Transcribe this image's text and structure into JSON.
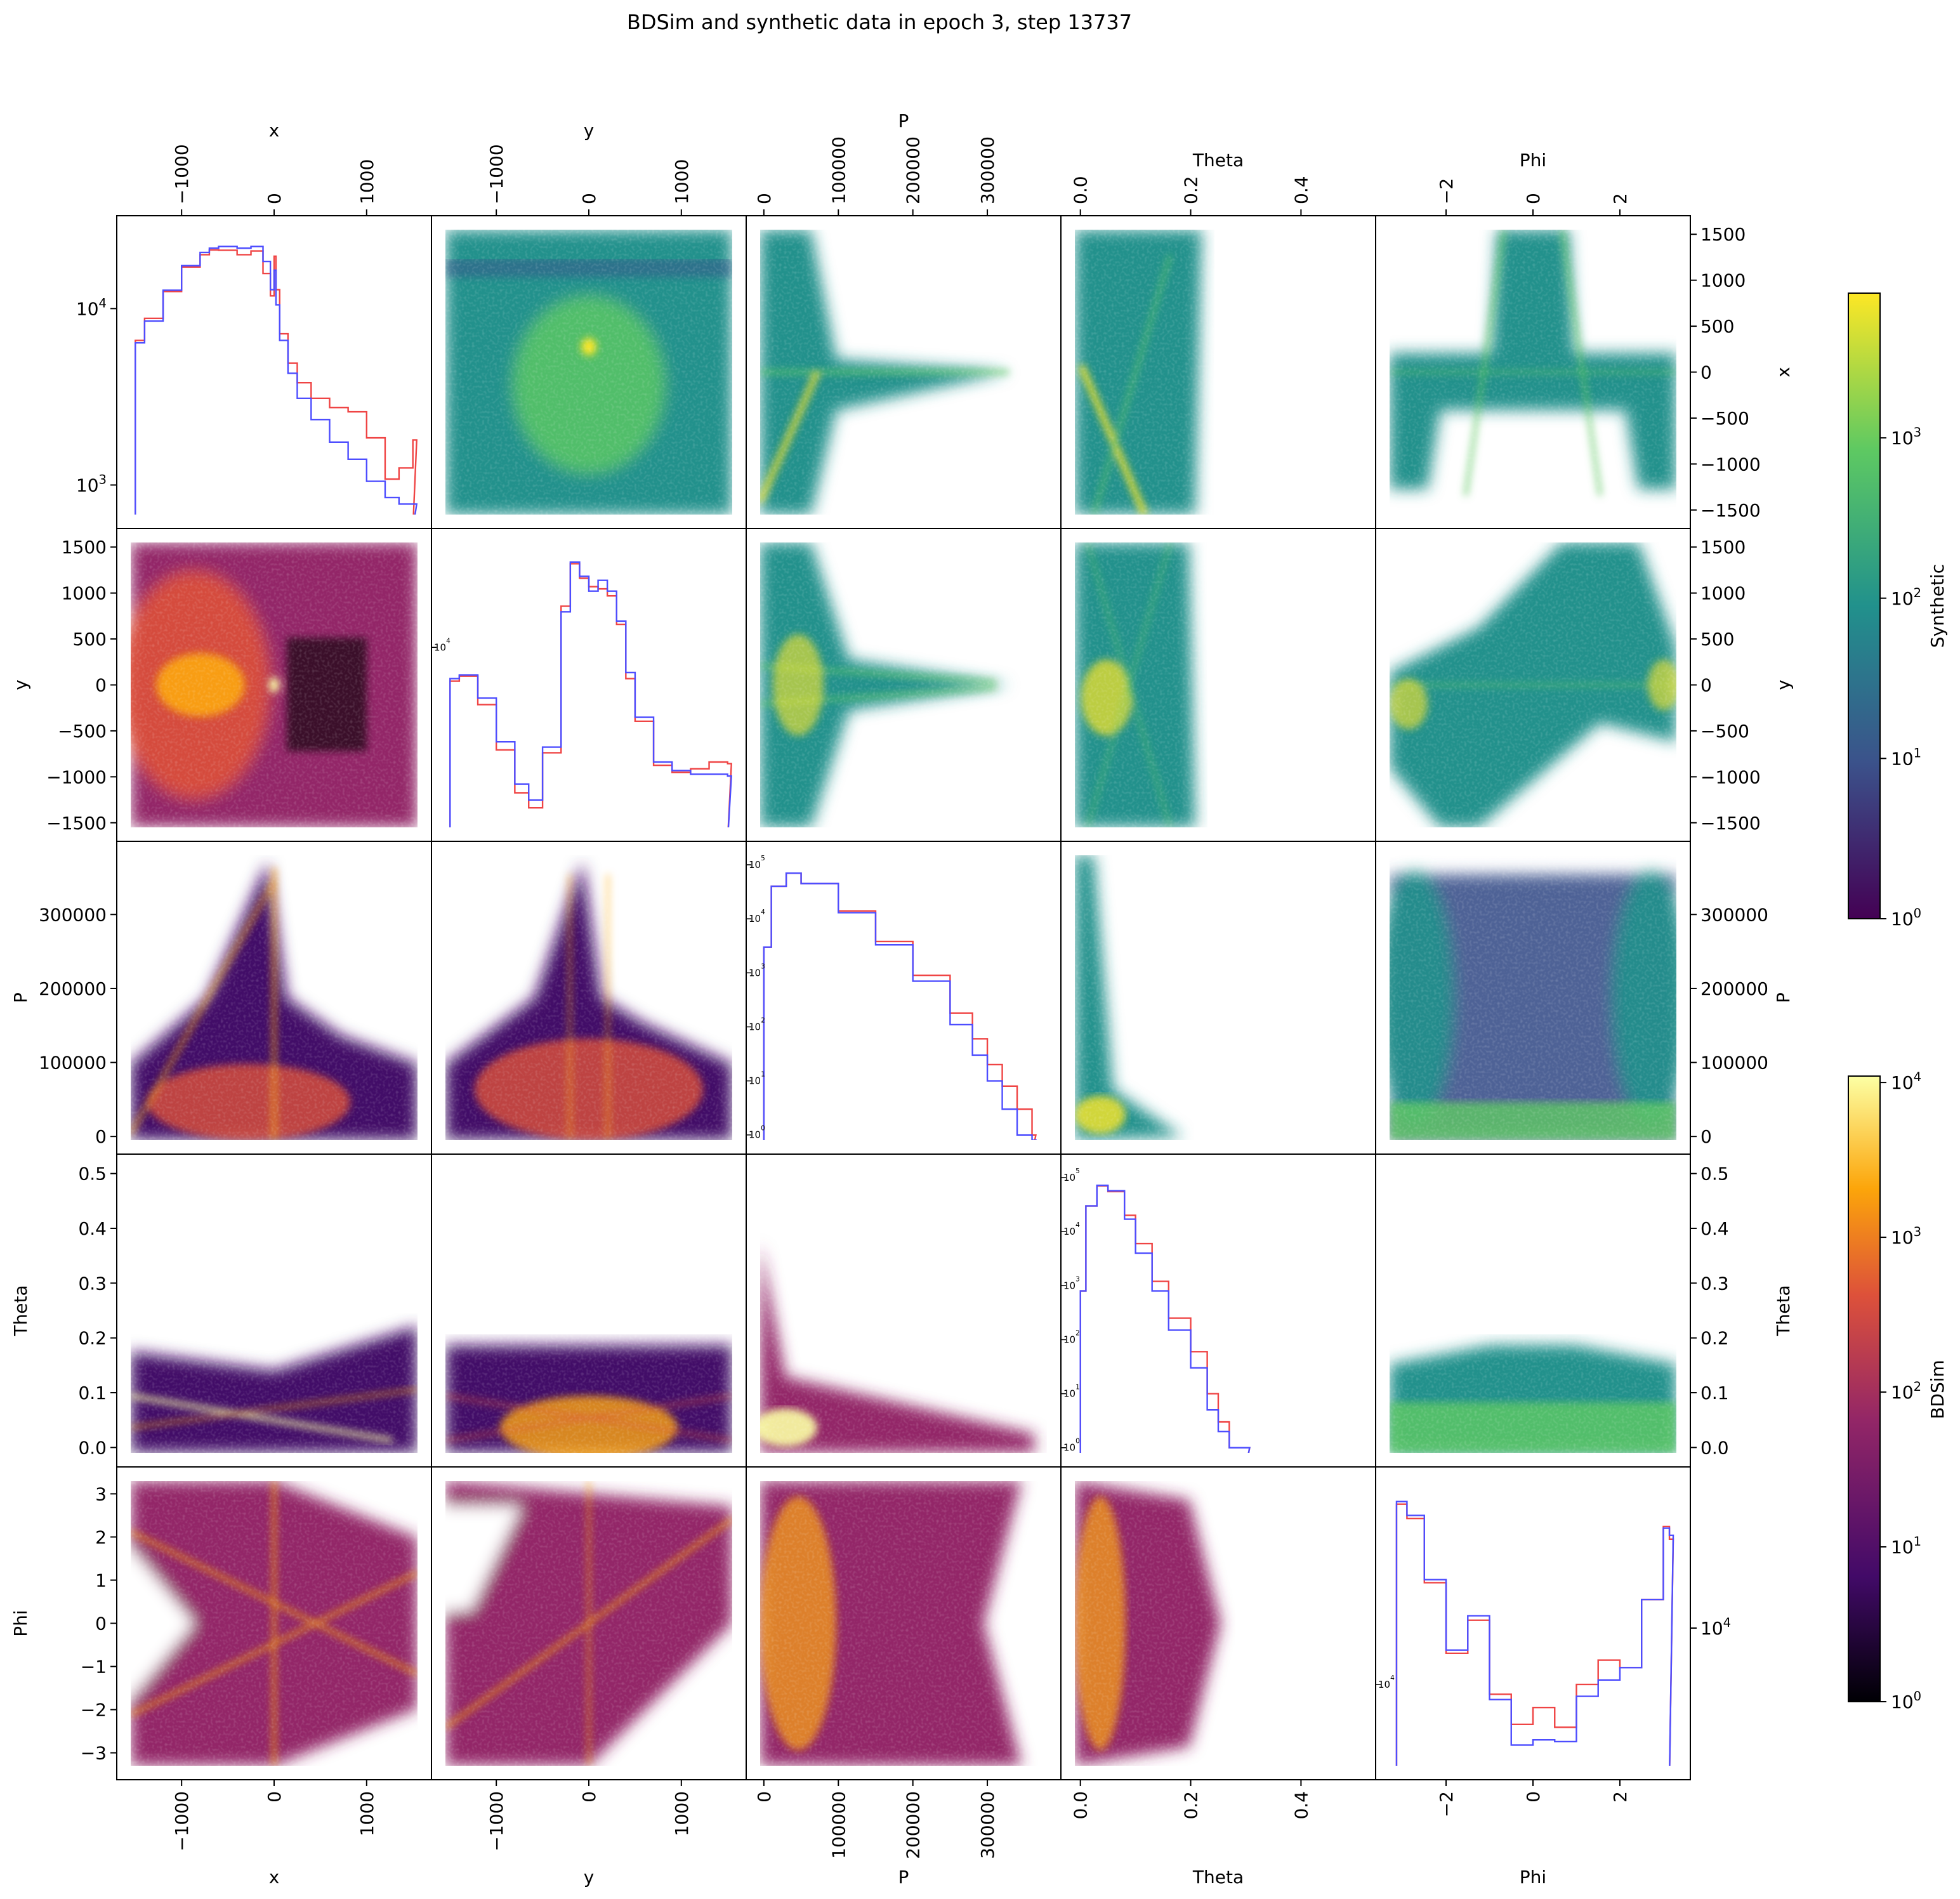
{
  "title": "BDSim and synthetic data in epoch 3, step 13737",
  "variables": [
    "x",
    "y",
    "P",
    "Theta",
    "Phi"
  ],
  "colors": {
    "bdsim_hist": "#ef4444",
    "synthetic_hist": "#4d4dff",
    "frame": "#000000",
    "background": "#ffffff"
  },
  "colorbars": {
    "synthetic": {
      "label": "Synthetic",
      "colormap": "viridis",
      "scale": "log",
      "ticks": [
        "10^0",
        "10^1",
        "10^2",
        "10^3"
      ],
      "range": [
        1,
        8000
      ]
    },
    "bdsim": {
      "label": "BDSim",
      "colormap": "inferno",
      "scale": "log",
      "ticks": [
        "10^0",
        "10^1",
        "10^2",
        "10^3",
        "10^4"
      ],
      "range": [
        1,
        11000
      ]
    }
  },
  "axes": {
    "x": {
      "label": "x",
      "range": [
        -1550,
        1550
      ],
      "ticks": [
        -1000,
        0,
        1000
      ],
      "tick_labels": [
        "−1000",
        "0",
        "1000"
      ],
      "row_ticks": [
        -1500,
        -1000,
        -500,
        0,
        500,
        1000,
        1500
      ],
      "row_tick_labels": [
        "−1500",
        "−1000",
        "−500",
        "0",
        "500",
        "1000",
        "1500"
      ]
    },
    "y": {
      "label": "y",
      "range": [
        -1550,
        1550
      ],
      "ticks": [
        -1000,
        0,
        1000
      ],
      "tick_labels": [
        "−1000",
        "0",
        "1000"
      ],
      "row_ticks": [
        -1500,
        -1000,
        -500,
        0,
        500,
        1000,
        1500
      ],
      "row_tick_labels": [
        "−1500",
        "−1000",
        "−500",
        "0",
        "500",
        "1000",
        "1500"
      ]
    },
    "P": {
      "label": "P",
      "range": [
        -5000,
        380000
      ],
      "ticks": [
        0,
        100000,
        200000,
        300000
      ],
      "tick_labels": [
        "0",
        "100000",
        "200000",
        "300000"
      ],
      "row_ticks": [
        0,
        100000,
        200000,
        300000
      ],
      "row_tick_labels": [
        "0",
        "100000",
        "200000",
        "300000"
      ]
    },
    "Theta": {
      "label": "Theta",
      "range": [
        -0.01,
        0.51
      ],
      "ticks": [
        0.0,
        0.2,
        0.4
      ],
      "tick_labels": [
        "0.0",
        "0.2",
        "0.4"
      ],
      "row_ticks": [
        0.0,
        0.1,
        0.2,
        0.3,
        0.4,
        0.5
      ],
      "row_tick_labels": [
        "0.0",
        "0.1",
        "0.2",
        "0.3",
        "0.4",
        "0.5"
      ]
    },
    "Phi": {
      "label": "Phi",
      "range": [
        -3.3,
        3.3
      ],
      "ticks": [
        -2,
        0,
        2
      ],
      "tick_labels": [
        "−2",
        "0",
        "2"
      ],
      "row_ticks": [
        -3,
        -2,
        -1,
        0,
        1,
        2,
        3
      ],
      "row_tick_labels": [
        "−3",
        "−2",
        "−1",
        "0",
        "1",
        "2",
        "3"
      ]
    }
  },
  "chart_data": {
    "type": "heatmap",
    "description_layout": "pair-plot matrix; diagonal = 1D histograms (red BDSim, blue synthetic), upper triangle = synthetic 2D log-density (viridis), lower triangle = BDSim 2D log-density (inferno)",
    "diagonal_histograms": [
      {
        "variable": "x",
        "yscale": "log",
        "ytick_labels": [
          "10^3",
          "10^4"
        ],
        "ylim": [
          680,
          28000
        ],
        "x": [
          -1500,
          -1400,
          -1200,
          -1000,
          -800,
          -700,
          -600,
          -400,
          -250,
          -120,
          -40,
          0,
          20,
          60,
          150,
          250,
          400,
          600,
          800,
          1000,
          1200,
          1350,
          1500
        ],
        "series": [
          {
            "name": "BDSim",
            "values": [
              6600,
              8800,
              12500,
              17200,
              20200,
              21500,
              21400,
              20200,
              21200,
              15800,
              11800,
              19800,
              12800,
              7200,
              4900,
              3800,
              3100,
              2750,
              2600,
              1850,
              1080,
              1250,
              1800
            ]
          },
          {
            "name": "Synthetic",
            "values": [
              6400,
              8500,
              12700,
              17500,
              20800,
              22000,
              22500,
              22000,
              22500,
              18500,
              12800,
              16500,
              10500,
              6600,
              4300,
              3100,
              2350,
              1750,
              1400,
              1050,
              850,
              780,
              780
            ]
          }
        ]
      },
      {
        "variable": "y",
        "yscale": "log",
        "ytick_labels": [
          "10^4"
        ],
        "x": [
          -1500,
          -1400,
          -1200,
          -1000,
          -800,
          -650,
          -500,
          -300,
          -200,
          -100,
          0,
          100,
          200,
          300,
          400,
          500,
          700,
          900,
          1100,
          1300,
          1500
        ],
        "series": [
          {
            "name": "BDSim",
            "values": [
              6800,
              7200,
              5200,
              3100,
              1900,
              1600,
              3000,
              16000,
              26000,
              22000,
              20000,
              19500,
              18000,
              13000,
              7000,
              4300,
              2600,
              2400,
              2500,
              2700,
              2650
            ]
          },
          {
            "name": "Synthetic",
            "values": [
              7000,
              7300,
              5600,
              3400,
              2100,
              1750,
              3200,
              15000,
              26500,
              22500,
              19000,
              21500,
              19000,
              13500,
              7500,
              4500,
              2700,
              2450,
              2350,
              2350,
              2300
            ]
          }
        ]
      },
      {
        "variable": "P",
        "yscale": "log",
        "ytick_labels": [
          "10^0",
          "10^1",
          "10^2",
          "10^3",
          "10^4",
          "10^5"
        ],
        "ylim": [
          0.8,
          150000
        ],
        "x": [
          0,
          10000,
          30000,
          50000,
          100000,
          150000,
          200000,
          250000,
          280000,
          300000,
          320000,
          340000,
          360000
        ],
        "series": [
          {
            "name": "BDSim",
            "values": [
              3000,
              40000,
              70000,
              45000,
              14000,
              3800,
              900,
              180,
              60,
              20,
              8,
              3,
              1
            ]
          },
          {
            "name": "Synthetic",
            "values": [
              3000,
              40000,
              70000,
              45000,
              13000,
              3300,
              700,
              110,
              30,
              10,
              3,
              1,
              0.8
            ]
          }
        ]
      },
      {
        "variable": "Theta",
        "yscale": "log",
        "ytick_labels": [
          "10^0",
          "10^1",
          "10^2",
          "10^3",
          "10^4",
          "10^5"
        ],
        "ylim": [
          0.8,
          150000
        ],
        "x": [
          0.0,
          0.01,
          0.03,
          0.05,
          0.08,
          0.1,
          0.13,
          0.16,
          0.2,
          0.23,
          0.25,
          0.27,
          0.3
        ],
        "series": [
          {
            "name": "BDSim",
            "values": [
              800,
              30000,
              70000,
              55000,
              20000,
              6000,
              1200,
              250,
              60,
              10,
              3,
              1,
              1
            ]
          },
          {
            "name": "Synthetic",
            "values": [
              800,
              30000,
              72000,
              57000,
              17000,
              4000,
              800,
              150,
              30,
              5,
              2,
              1,
              1
            ]
          }
        ]
      },
      {
        "variable": "Phi",
        "yscale": "log",
        "ytick_labels": [
          "10^4"
        ],
        "x": [
          -3.14,
          -2.9,
          -2.5,
          -2.0,
          -1.5,
          -1.0,
          -0.5,
          0.0,
          0.5,
          1.0,
          1.5,
          2.0,
          2.5,
          3.0,
          3.14
        ],
        "series": [
          {
            "name": "BDSim",
            "values": [
              70000,
              60000,
              30000,
              14000,
              20000,
              9000,
              6500,
              7800,
              6300,
              10000,
              13000,
              12000,
              25000,
              55000,
              48000
            ]
          },
          {
            "name": "Synthetic",
            "values": [
              72000,
              62000,
              31000,
              14500,
              21000,
              8500,
              5200,
              5500,
              5400,
              8800,
              10500,
              12000,
              25000,
              54000,
              50000
            ]
          }
        ]
      }
    ],
    "upper_triangle": "Synthetic 2D histograms (log color scale, viridis)",
    "lower_triangle": "BDSim 2D histograms (log color scale, inferno)"
  }
}
